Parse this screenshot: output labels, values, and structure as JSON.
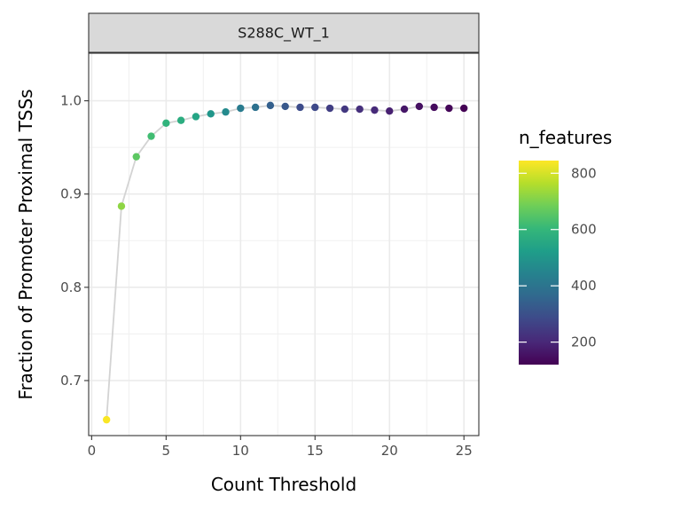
{
  "chart_data": {
    "type": "scatter",
    "facet_label": "S288C_WT_1",
    "xlabel": "Count Threshold",
    "ylabel": "Fraction of Promoter Proximal TSSs",
    "xlim": [
      -0.2,
      26.0
    ],
    "ylim": [
      0.641,
      1.051
    ],
    "x_ticks": [
      0,
      5,
      10,
      15,
      20,
      25
    ],
    "x_tick_labels": [
      "0",
      "5",
      "10",
      "15",
      "20",
      "25"
    ],
    "y_ticks": [
      0.7,
      0.8,
      0.9,
      1.0
    ],
    "y_tick_labels": [
      "0.7",
      "0.8",
      "0.9",
      "1.0"
    ],
    "grid": true,
    "line_color": "#d3d3d3",
    "series": [
      {
        "name": "S288C_WT_1",
        "x": [
          1,
          2,
          3,
          4,
          5,
          6,
          7,
          8,
          9,
          10,
          11,
          12,
          13,
          14,
          15,
          16,
          17,
          18,
          19,
          20,
          21,
          22,
          23,
          24,
          25
        ],
        "y": [
          0.658,
          0.887,
          0.94,
          0.962,
          0.976,
          0.979,
          0.983,
          0.986,
          0.988,
          0.992,
          0.993,
          0.995,
          0.994,
          0.993,
          0.993,
          0.992,
          0.991,
          0.991,
          0.99,
          0.989,
          0.991,
          0.994,
          0.993,
          0.992,
          0.992
        ],
        "n_features": [
          840,
          720,
          660,
          620,
          590,
          570,
          545,
          500,
          465,
          420,
          390,
          340,
          320,
          290,
          280,
          255,
          240,
          220,
          205,
          185,
          165,
          150,
          140,
          130,
          120
        ]
      }
    ],
    "legend": {
      "title": "n_features",
      "position": "right",
      "range": [
        120,
        845
      ],
      "ticks": [
        200,
        400,
        600,
        800
      ],
      "tick_labels": [
        "200",
        "400",
        "600",
        "800"
      ],
      "colormap": "viridis",
      "colors": [
        "#440154",
        "#482878",
        "#3e4989",
        "#31688e",
        "#26828e",
        "#1f9e89",
        "#35b779",
        "#6ece58",
        "#b5de2b",
        "#fde725"
      ]
    }
  }
}
